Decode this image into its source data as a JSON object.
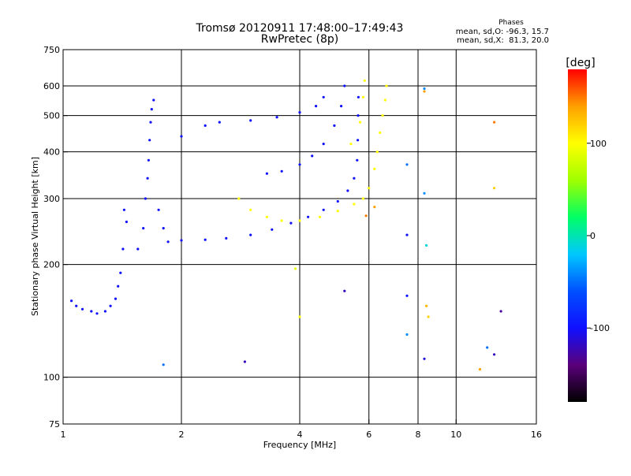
{
  "chart_data": {
    "type": "scatter",
    "title": "Tromsø 20120911 17:48:00–17:49:43",
    "subtitle": "RwPretec (8p)",
    "xlabel": "Frequency [MHz]",
    "ylabel": "Stationary phase Virtual Height [km]",
    "x_scale": "log",
    "y_scale": "log",
    "xlim": [
      1,
      16
    ],
    "ylim": [
      75,
      750
    ],
    "x_ticks": [
      1,
      2,
      4,
      6,
      8,
      10,
      16
    ],
    "x_tick_labels": [
      "1",
      "2",
      "4",
      "6",
      "8",
      "10",
      "16"
    ],
    "y_ticks": [
      75,
      100,
      200,
      300,
      400,
      500,
      600,
      750
    ],
    "y_tick_labels": [
      "75",
      "100",
      "200",
      "300",
      "400",
      "500",
      "600",
      "750"
    ],
    "grid_x": [
      2,
      4,
      6,
      8,
      10
    ],
    "grid_y": [
      100,
      200,
      300,
      400,
      500,
      600
    ],
    "grid": true,
    "stats": {
      "heading": "Phases",
      "line_o": "mean, sd,O: -96.3, 15.7",
      "line_x": "mean, sd,X:  81.3, 20.0"
    },
    "colorbar": {
      "label": "[deg]",
      "min": -180,
      "max": 180,
      "ticks": [
        100,
        0,
        -100
      ],
      "tick_labels": [
        "100",
        "0",
        "-100"
      ],
      "colors": [
        "#000000",
        "#5a007a",
        "#1010ff",
        "#0050ff",
        "#00c8ff",
        "#00ff64",
        "#a0ff00",
        "#ffff00",
        "#ffa000",
        "#ff0000"
      ]
    },
    "series": [
      {
        "points": [
          [
            1.05,
            160,
            -100
          ],
          [
            1.08,
            155,
            -100
          ],
          [
            1.12,
            152,
            -100
          ],
          [
            1.18,
            150,
            -100
          ],
          [
            1.22,
            148,
            -100
          ],
          [
            1.28,
            150,
            -100
          ],
          [
            1.32,
            155,
            -100
          ],
          [
            1.36,
            162,
            -100
          ],
          [
            1.38,
            175,
            -100
          ],
          [
            1.4,
            190,
            -100
          ],
          [
            1.42,
            220,
            -100
          ],
          [
            1.45,
            260,
            -100
          ],
          [
            1.43,
            280,
            -100
          ],
          [
            1.55,
            220,
            -100
          ],
          [
            1.6,
            250,
            -100
          ],
          [
            1.62,
            300,
            -100
          ],
          [
            1.64,
            340,
            -100
          ],
          [
            1.65,
            380,
            -100
          ],
          [
            1.66,
            430,
            -100
          ],
          [
            1.67,
            480,
            -100
          ],
          [
            1.68,
            520,
            -100
          ],
          [
            1.7,
            550,
            -100
          ],
          [
            1.75,
            280,
            -100
          ],
          [
            1.8,
            250,
            -100
          ],
          [
            1.85,
            230,
            -100
          ],
          [
            2.0,
            232,
            -100
          ],
          [
            2.3,
            233,
            -100
          ],
          [
            2.6,
            235,
            -100
          ],
          [
            3.0,
            240,
            -100
          ],
          [
            3.4,
            248,
            -100
          ],
          [
            3.8,
            258,
            -100
          ],
          [
            4.2,
            268,
            -100
          ],
          [
            4.6,
            280,
            -100
          ],
          [
            5.0,
            295,
            -100
          ],
          [
            5.3,
            315,
            -100
          ],
          [
            5.5,
            340,
            -100
          ],
          [
            5.6,
            380,
            -100
          ],
          [
            5.62,
            430,
            -100
          ],
          [
            5.63,
            500,
            -100
          ],
          [
            5.64,
            560,
            -100
          ],
          [
            2.0,
            440,
            -100
          ],
          [
            2.3,
            470,
            -100
          ],
          [
            2.5,
            480,
            -100
          ],
          [
            3.0,
            485,
            -100
          ],
          [
            3.5,
            495,
            -100
          ],
          [
            4.0,
            510,
            -100
          ],
          [
            4.4,
            530,
            -100
          ],
          [
            4.6,
            560,
            -100
          ],
          [
            4.0,
            370,
            -100
          ],
          [
            4.3,
            390,
            -100
          ],
          [
            4.6,
            420,
            -100
          ],
          [
            4.9,
            470,
            -100
          ],
          [
            5.1,
            530,
            -100
          ],
          [
            5.2,
            600,
            -100
          ],
          [
            3.3,
            350,
            -100
          ],
          [
            3.6,
            355,
            -100
          ],
          [
            2.8,
            300,
            100
          ],
          [
            3.0,
            280,
            100
          ],
          [
            3.3,
            268,
            100
          ],
          [
            3.6,
            262,
            100
          ],
          [
            4.0,
            262,
            100
          ],
          [
            4.5,
            268,
            100
          ],
          [
            5.0,
            278,
            100
          ],
          [
            5.5,
            290,
            100
          ],
          [
            5.8,
            300,
            100
          ],
          [
            6.0,
            320,
            100
          ],
          [
            6.2,
            360,
            100
          ],
          [
            6.3,
            400,
            100
          ],
          [
            6.4,
            450,
            100
          ],
          [
            6.5,
            500,
            100
          ],
          [
            6.6,
            550,
            100
          ],
          [
            6.65,
            600,
            100
          ],
          [
            5.4,
            420,
            100
          ],
          [
            5.7,
            480,
            100
          ],
          [
            5.8,
            560,
            100
          ],
          [
            5.85,
            620,
            100
          ],
          [
            5.9,
            270,
            150
          ],
          [
            6.2,
            285,
            140
          ],
          [
            8.3,
            580,
            140
          ],
          [
            12.5,
            480,
            150
          ],
          [
            12.5,
            320,
            120
          ],
          [
            8.4,
            155,
            130
          ],
          [
            8.5,
            145,
            120
          ],
          [
            11.5,
            105,
            140
          ],
          [
            8.3,
            590,
            -40
          ],
          [
            7.5,
            130,
            -40
          ],
          [
            7.5,
            370,
            -50
          ],
          [
            8.3,
            310,
            -40
          ],
          [
            12.0,
            120,
            -50
          ],
          [
            1.8,
            108,
            -50
          ],
          [
            3.9,
            195,
            90
          ],
          [
            4.0,
            145,
            100
          ],
          [
            2.9,
            110,
            -120
          ],
          [
            5.2,
            170,
            -120
          ],
          [
            7.5,
            165,
            -100
          ],
          [
            8.3,
            112,
            -110
          ],
          [
            12.5,
            115,
            -120
          ],
          [
            13.0,
            150,
            -130
          ],
          [
            7.5,
            240,
            -100
          ],
          [
            8.4,
            225,
            -10
          ]
        ]
      }
    ]
  }
}
